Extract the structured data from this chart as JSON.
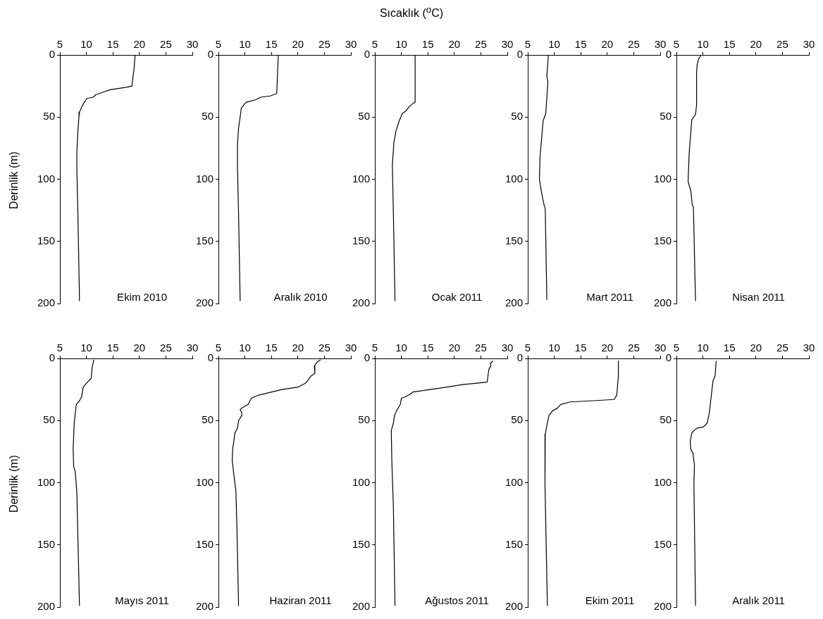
{
  "chart_data": [
    {
      "type": "line",
      "title": "Ekim 2010",
      "ylabel": "Derinlik (m)",
      "color": "#000000",
      "marker": "none",
      "grid": false,
      "xlim": [
        5,
        30
      ],
      "xticks": [
        5,
        10,
        15,
        20,
        25,
        30
      ],
      "ylim": [
        200,
        0
      ],
      "yticks": [
        0,
        50,
        100,
        150,
        200
      ],
      "x": [
        19.2,
        19.0,
        18.7,
        18.6,
        17.6,
        14.5,
        13.1,
        11.8,
        11.3,
        10.1,
        9.6,
        9.1,
        8.7,
        8.6,
        8.4,
        8.2,
        8.2,
        8.4,
        8.7
      ],
      "values": [
        0,
        11,
        21,
        25,
        26,
        28,
        30,
        32,
        34,
        35,
        38,
        42,
        46,
        50,
        61,
        78,
        91,
        128,
        198
      ]
    },
    {
      "type": "line",
      "title": "Aralık 2010",
      "color": "#000000",
      "marker": "none",
      "grid": false,
      "xlim": [
        5,
        30
      ],
      "xticks": [
        5,
        10,
        15,
        20,
        25,
        30
      ],
      "ylim": [
        200,
        0
      ],
      "yticks": [
        0,
        50,
        100,
        150,
        200
      ],
      "x": [
        16.3,
        16.0,
        14.8,
        13.0,
        12.1,
        10.8,
        10.2,
        9.3,
        9.1,
        8.8,
        8.6,
        8.6,
        8.8,
        9.1
      ],
      "values": [
        0,
        31,
        33,
        34,
        36,
        37.5,
        38,
        43,
        50,
        59,
        72,
        91,
        128,
        198
      ]
    },
    {
      "type": "line",
      "title": "Ocak 2011",
      "xlabel": "Sıcaklık ($^{o}$C)",
      "color": "#000000",
      "marker": "none",
      "grid": false,
      "xlim": [
        5,
        30
      ],
      "xticks": [
        5,
        10,
        15,
        20,
        25,
        30
      ],
      "ylim": [
        200,
        0
      ],
      "yticks": [
        0,
        50,
        100,
        150,
        200
      ],
      "x": [
        12.6,
        12.6,
        12.2,
        11.4,
        10.9,
        10.2,
        9.6,
        9.0,
        8.6,
        8.3,
        8.5,
        8.8
      ],
      "values": [
        0,
        38,
        39,
        42,
        45,
        47,
        53,
        61,
        70,
        89,
        128,
        198
      ]
    },
    {
      "type": "line",
      "title": "Mart 2011",
      "color": "#000000",
      "marker": "none",
      "grid": false,
      "xlim": [
        5,
        30
      ],
      "xticks": [
        5,
        10,
        15,
        20,
        25,
        30
      ],
      "ylim": [
        200,
        0
      ],
      "yticks": [
        0,
        50,
        100,
        150,
        200
      ],
      "x": [
        8.9,
        8.6,
        8.8,
        8.4,
        7.9,
        7.6,
        7.3,
        7.2,
        7.7,
        8.1,
        8.3,
        8.6
      ],
      "values": [
        0,
        17,
        22,
        47,
        53,
        68,
        83,
        100,
        113,
        121,
        124,
        197
      ]
    },
    {
      "type": "line",
      "title": "Nisan 2011",
      "color": "#000000",
      "marker": "none",
      "grid": false,
      "xlim": [
        5,
        30
      ],
      "xticks": [
        5,
        10,
        15,
        20,
        25,
        30
      ],
      "ylim": [
        200,
        0
      ],
      "yticks": [
        0,
        50,
        100,
        150,
        200
      ],
      "x": [
        9.7,
        9.2,
        8.9,
        8.8,
        8.8,
        8.6,
        7.9,
        7.7,
        7.4,
        7.2,
        7.7,
        8.0,
        8.2,
        8.6
      ],
      "values": [
        0,
        3,
        8,
        14,
        40,
        48,
        52,
        63,
        79,
        102,
        109,
        121,
        122,
        198
      ]
    },
    {
      "type": "line",
      "title": "Mayıs 2011",
      "ylabel": "Derinlik (m)",
      "color": "#000000",
      "marker": "none",
      "grid": false,
      "xlim": [
        5,
        30
      ],
      "xticks": [
        5,
        10,
        15,
        20,
        25,
        30
      ],
      "ylim": [
        200,
        0
      ],
      "yticks": [
        0,
        50,
        100,
        150,
        200
      ],
      "x": [
        11.4,
        11.1,
        10.9,
        10.0,
        9.4,
        9.1,
        8.7,
        8.1,
        7.7,
        7.5,
        7.6,
        7.9,
        8.2,
        8.7
      ],
      "values": [
        1,
        7,
        16,
        20,
        23,
        31,
        34,
        37,
        52,
        73,
        87,
        91,
        108,
        199
      ]
    },
    {
      "type": "line",
      "title": "Haziran 2011",
      "color": "#000000",
      "marker": "none",
      "grid": false,
      "xlim": [
        5,
        30
      ],
      "xticks": [
        5,
        10,
        15,
        20,
        25,
        30
      ],
      "ylim": [
        200,
        0
      ],
      "yticks": [
        0,
        50,
        100,
        150,
        200
      ],
      "x": [
        24.3,
        23.6,
        23.1,
        23.2,
        22.5,
        21.8,
        21.4,
        20.1,
        17.0,
        12.6,
        11.2,
        10.6,
        9.4,
        9.1,
        9.4,
        9.4,
        8.8,
        8.6,
        8.1,
        7.9,
        7.7,
        7.6,
        7.9,
        8.3,
        8.5,
        8.8
      ],
      "values": [
        1,
        3,
        6,
        12,
        14,
        18,
        20,
        23,
        25,
        29.5,
        32,
        37,
        40,
        41,
        43.5,
        46,
        50,
        56,
        60,
        67,
        72,
        82,
        93,
        107,
        138,
        199
      ]
    },
    {
      "type": "line",
      "title": "Ağustos 2011",
      "color": "#000000",
      "marker": "none",
      "grid": false,
      "xlim": [
        5,
        30
      ],
      "xticks": [
        5,
        10,
        15,
        20,
        25,
        30
      ],
      "ylim": [
        200,
        0
      ],
      "yticks": [
        0,
        50,
        100,
        150,
        200
      ],
      "x": [
        27.3,
        26.8,
        26.9,
        26.5,
        26.2,
        21.6,
        17.1,
        15.4,
        12.2,
        11.4,
        10.7,
        10.0,
        9.8,
        9.1,
        8.7,
        8.5,
        8.1,
        8.2,
        8.5,
        8.8
      ],
      "values": [
        2,
        4,
        6,
        9,
        19,
        21,
        24,
        25,
        27,
        29.5,
        31,
        32,
        37,
        42,
        46,
        52,
        58,
        82,
        120,
        199
      ]
    },
    {
      "type": "line",
      "title": "Ekim 2011",
      "color": "#000000",
      "marker": "none",
      "grid": false,
      "xlim": [
        5,
        30
      ],
      "xticks": [
        5,
        10,
        15,
        20,
        25,
        30
      ],
      "ylim": [
        200,
        0
      ],
      "yticks": [
        0,
        50,
        100,
        150,
        200
      ],
      "x": [
        22.1,
        22.1,
        21.8,
        21.3,
        17.4,
        13.0,
        11.2,
        10.6,
        9.7,
        9.0,
        8.6,
        8.3,
        8.2,
        8.3,
        8.7
      ],
      "values": [
        2,
        14,
        29.5,
        33,
        34,
        35,
        37,
        40,
        42,
        46,
        54,
        61,
        75,
        101,
        199
      ]
    },
    {
      "type": "line",
      "title": "Aralık 2011",
      "color": "#000000",
      "marker": "none",
      "grid": false,
      "xlim": [
        5,
        30
      ],
      "xticks": [
        5,
        10,
        15,
        20,
        25,
        30
      ],
      "ylim": [
        200,
        0
      ],
      "yticks": [
        0,
        50,
        100,
        150,
        200
      ],
      "x": [
        12.5,
        12.3,
        11.9,
        11.2,
        10.8,
        10.1,
        9.0,
        8.3,
        7.9,
        7.6,
        7.7,
        8.1,
        8.4,
        8.3,
        8.6
      ],
      "values": [
        2,
        14,
        18,
        44,
        52,
        55,
        56,
        58,
        60,
        67,
        73,
        76,
        86,
        101,
        199
      ]
    }
  ]
}
